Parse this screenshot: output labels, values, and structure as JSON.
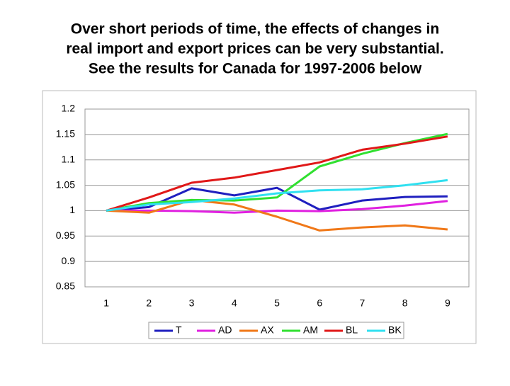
{
  "chart_data": {
    "type": "line",
    "title": [
      "Over short periods of time, the effects of changes in",
      "real import and export prices can be very substantial.",
      "See the results for Canada for 1997-2006 below"
    ],
    "categories": [
      "1",
      "2",
      "3",
      "4",
      "5",
      "6",
      "7",
      "8",
      "9"
    ],
    "ylim": [
      0.85,
      1.2
    ],
    "yticks": [
      0.85,
      0.9,
      0.95,
      1,
      1.05,
      1.1,
      1.15,
      1.2
    ],
    "grid": true,
    "legend": "bottom",
    "series": [
      {
        "name": "T",
        "color": "#1f1fbf",
        "values": [
          1,
          1.007,
          1.044,
          1.03,
          1.045,
          1.002,
          1.02,
          1.027,
          1.028
        ]
      },
      {
        "name": "AD",
        "color": "#e020e0",
        "values": [
          1,
          1.0,
          0.999,
          0.996,
          1.0,
          0.999,
          1.003,
          1.01,
          1.019
        ]
      },
      {
        "name": "AX",
        "color": "#f07818",
        "values": [
          1,
          0.996,
          1.021,
          1.012,
          0.988,
          0.961,
          0.967,
          0.971,
          0.963
        ]
      },
      {
        "name": "AM",
        "color": "#30e030",
        "values": [
          1,
          1.015,
          1.021,
          1.02,
          1.026,
          1.087,
          1.112,
          1.133,
          1.151
        ]
      },
      {
        "name": "BL",
        "color": "#e01818",
        "values": [
          1,
          1.026,
          1.055,
          1.065,
          1.08,
          1.095,
          1.12,
          1.132,
          1.146
        ]
      },
      {
        "name": "BK",
        "color": "#30e0f0",
        "values": [
          1,
          1.012,
          1.017,
          1.024,
          1.034,
          1.04,
          1.042,
          1.05,
          1.06
        ]
      }
    ]
  }
}
